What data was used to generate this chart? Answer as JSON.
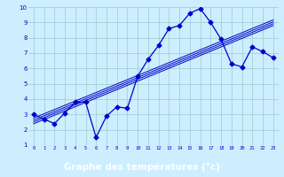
{
  "hours": [
    0,
    1,
    2,
    3,
    4,
    5,
    6,
    7,
    8,
    9,
    10,
    11,
    12,
    13,
    14,
    15,
    16,
    17,
    18,
    19,
    20,
    21,
    22,
    23
  ],
  "temps": [
    3.0,
    2.7,
    2.4,
    3.1,
    3.8,
    3.8,
    1.5,
    2.9,
    3.5,
    3.4,
    5.5,
    6.6,
    7.5,
    8.6,
    8.8,
    9.6,
    9.9,
    9.0,
    7.9,
    6.3,
    6.1,
    7.4,
    7.1,
    6.7
  ],
  "line_color": "#0000cc",
  "marker": "D",
  "marker_size": 2.5,
  "bg_color": "#cceeff",
  "grid_color": "#99cccc",
  "xlabel": "Graphe des températures (°c)",
  "xlabel_color": "white",
  "xlabel_bg": "#2222aa",
  "xlim": [
    -0.5,
    23.5
  ],
  "ylim": [
    1,
    10
  ],
  "trend_offsets": [
    -0.12,
    0.0,
    0.12,
    0.25
  ]
}
